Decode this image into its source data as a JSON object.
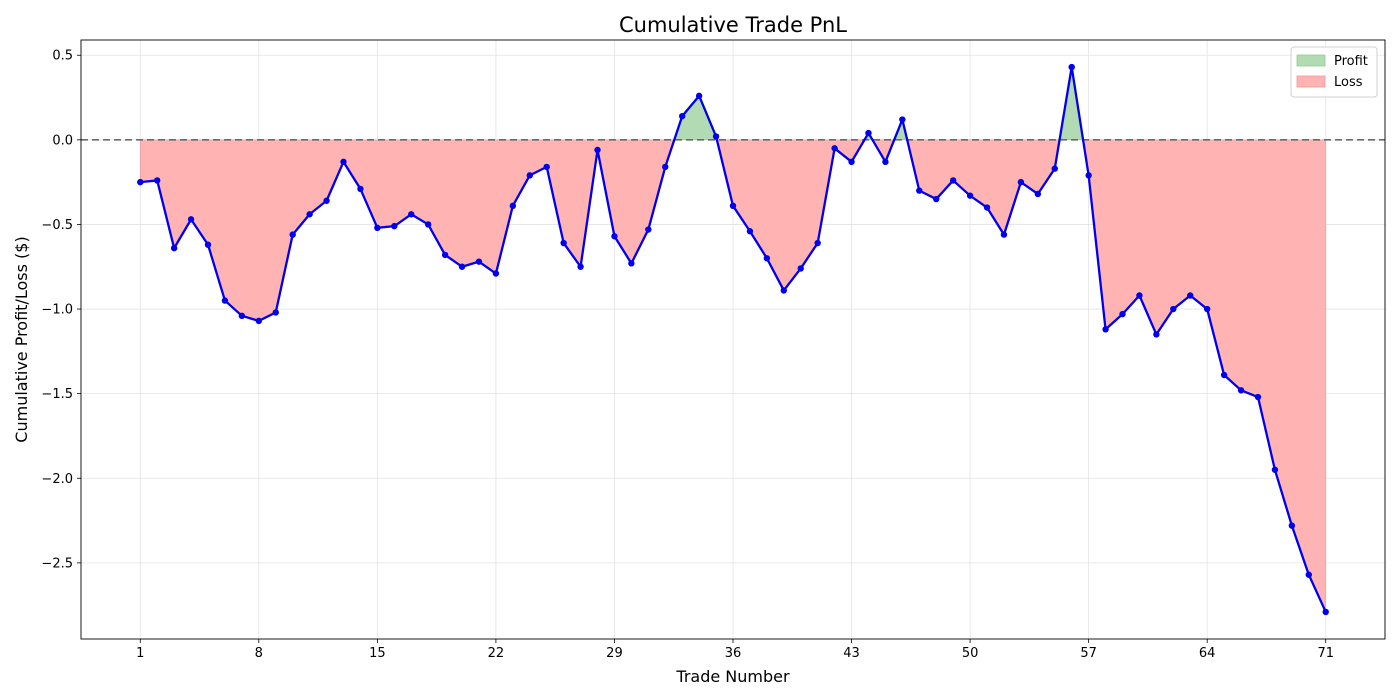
{
  "chart_data": {
    "type": "line",
    "title": "Cumulative Trade PnL",
    "xlabel": "Trade Number",
    "ylabel": "Cumulative Profit/Loss ($)",
    "xlim": [
      -2.5,
      74.5
    ],
    "ylim": [
      -2.95,
      0.59
    ],
    "xticks": [
      1,
      8,
      15,
      22,
      29,
      36,
      43,
      50,
      57,
      64,
      71
    ],
    "yticks": [
      0.5,
      0.0,
      -0.5,
      -1.0,
      -1.5,
      -2.0,
      -2.5
    ],
    "ytick_labels": [
      "0.5",
      "0.0",
      "−0.5",
      "−1.0",
      "−1.5",
      "−2.0",
      "−2.5"
    ],
    "grid": true,
    "baseline": 0,
    "legend": {
      "position": "top-right",
      "entries": [
        {
          "label": "Profit",
          "color": "#b3dbb3"
        },
        {
          "label": "Loss",
          "color": "#ffb3b3"
        }
      ]
    },
    "series": [
      {
        "line_color": "#0000ee",
        "x": [
          1,
          2,
          3,
          4,
          5,
          6,
          7,
          8,
          9,
          10,
          11,
          12,
          13,
          14,
          15,
          16,
          17,
          18,
          19,
          20,
          21,
          22,
          23,
          24,
          25,
          26,
          27,
          28,
          29,
          30,
          31,
          32,
          33,
          34,
          35,
          36,
          37,
          38,
          39,
          40,
          41,
          42,
          43,
          44,
          45,
          46,
          47,
          48,
          49,
          50,
          51,
          52,
          53,
          54,
          55,
          56,
          57,
          58,
          59,
          60,
          61,
          62,
          63,
          64,
          65,
          66,
          67,
          68,
          69,
          70,
          71
        ],
        "values": [
          -0.25,
          -0.24,
          -0.64,
          -0.47,
          -0.62,
          -0.95,
          -1.04,
          -1.07,
          -1.02,
          -0.56,
          -0.44,
          -0.36,
          -0.13,
          -0.29,
          -0.52,
          -0.51,
          -0.44,
          -0.5,
          -0.68,
          -0.75,
          -0.72,
          -0.79,
          -0.39,
          -0.21,
          -0.16,
          -0.61,
          -0.75,
          -0.06,
          -0.57,
          -0.73,
          -0.53,
          -0.16,
          0.14,
          0.26,
          0.02,
          -0.39,
          -0.54,
          -0.7,
          -0.89,
          -0.76,
          -0.61,
          -0.05,
          -0.13,
          0.04,
          -0.13,
          0.12,
          -0.3,
          -0.35,
          -0.24,
          -0.33,
          -0.4,
          -0.56,
          -0.25,
          -0.32,
          -0.17,
          0.43,
          -0.21,
          -1.12,
          -1.03,
          -0.92,
          -1.15,
          -1.0,
          -0.92,
          -1.0,
          -1.39,
          -1.48,
          -1.52,
          -1.95,
          -2.28,
          -2.57,
          -2.79
        ]
      }
    ]
  }
}
